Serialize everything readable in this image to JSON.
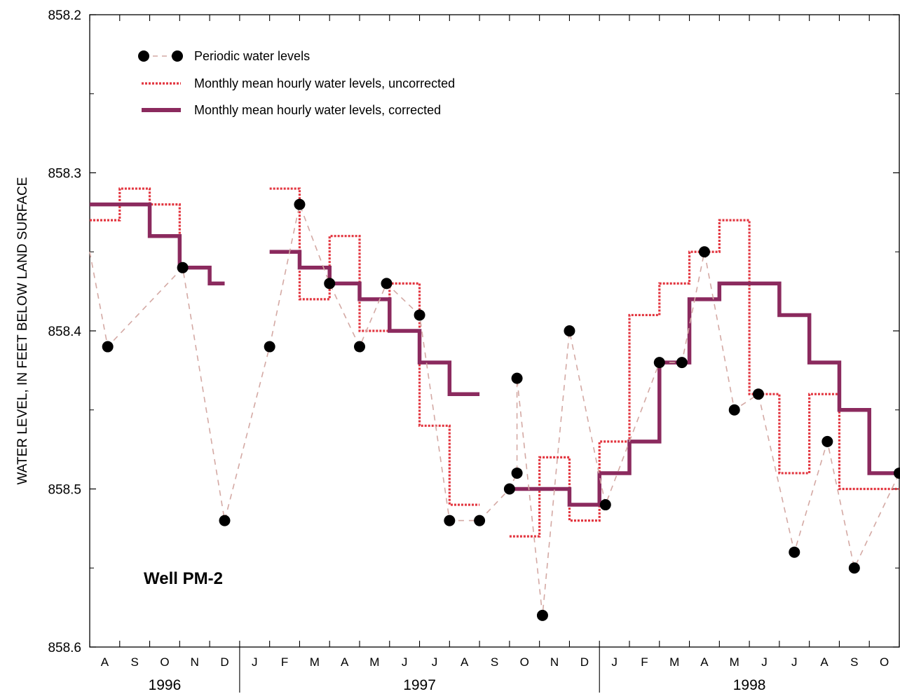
{
  "chart_data": {
    "type": "line",
    "ylabel": "WATER LEVEL, IN FEET BELOW LAND SURFACE",
    "ylim": [
      858.2,
      858.6
    ],
    "y_inverted": true,
    "y_ticks": [
      858.2,
      858.3,
      858.4,
      858.5,
      858.6
    ],
    "y_tick_labels": [
      "858.2",
      "858.3",
      "858.4",
      "858.5",
      "858.6"
    ],
    "month_labels": [
      "A",
      "S",
      "O",
      "N",
      "D",
      "J",
      "F",
      "M",
      "A",
      "M",
      "J",
      "J",
      "A",
      "S",
      "O",
      "N",
      "D",
      "J",
      "F",
      "M",
      "A",
      "M",
      "J",
      "J",
      "A",
      "S",
      "O"
    ],
    "years": [
      {
        "label": "1996",
        "start_month": 0,
        "end_month": 5
      },
      {
        "label": "1997",
        "start_month": 5,
        "end_month": 17
      },
      {
        "label": "1998",
        "start_month": 17,
        "end_month": 27
      }
    ],
    "annotation": "Well PM-2",
    "colors": {
      "periodic_markers": "#000000",
      "periodic_line": "#d4a9a4",
      "uncorrected": "#e2353f",
      "corrected": "#8b2a5e"
    },
    "legend_position": "top-left",
    "series": [
      {
        "name": "Periodic water levels",
        "style": "markers-dashed",
        "points": [
          [
            0.0,
            858.35
          ],
          [
            0.6,
            858.41
          ],
          [
            3.1,
            858.36
          ],
          [
            4.5,
            858.52
          ],
          [
            6.0,
            858.41
          ],
          [
            7.0,
            858.32
          ],
          [
            8.0,
            858.37
          ],
          [
            9.0,
            858.41
          ],
          [
            9.9,
            858.37
          ],
          [
            11.0,
            858.39
          ],
          [
            12.0,
            858.52
          ],
          [
            13.0,
            858.52
          ],
          [
            14.0,
            858.5
          ],
          [
            14.25,
            858.49
          ],
          [
            14.25,
            858.43
          ],
          [
            15.1,
            858.58
          ],
          [
            16.0,
            858.4
          ],
          [
            17.2,
            858.51
          ],
          [
            19.0,
            858.42
          ],
          [
            19.75,
            858.42
          ],
          [
            20.5,
            858.35
          ],
          [
            21.5,
            858.45
          ],
          [
            22.3,
            858.44
          ],
          [
            23.5,
            858.54
          ],
          [
            24.6,
            858.47
          ],
          [
            25.5,
            858.55
          ],
          [
            27.0,
            858.49
          ]
        ]
      },
      {
        "name": "Monthly mean hourly water levels, uncorrected",
        "style": "dotted-step",
        "segments": [
          [
            [
              0,
              1,
              858.33
            ],
            [
              1,
              2,
              858.31
            ],
            [
              2,
              3,
              858.32
            ],
            [
              3,
              4,
              858.36
            ]
          ],
          [
            [
              6,
              7,
              858.31
            ],
            [
              7,
              8,
              858.38
            ],
            [
              8,
              9,
              858.34
            ],
            [
              9,
              10,
              858.4
            ],
            [
              10,
              11,
              858.37
            ],
            [
              11,
              12,
              858.46
            ],
            [
              12,
              13,
              858.51
            ]
          ],
          [
            [
              14,
              15,
              858.53
            ],
            [
              15,
              16,
              858.48
            ],
            [
              16,
              17,
              858.52
            ],
            [
              17,
              18,
              858.47
            ],
            [
              18,
              19,
              858.39
            ],
            [
              19,
              20,
              858.37
            ],
            [
              20,
              21,
              858.35
            ],
            [
              21,
              22,
              858.33
            ],
            [
              22,
              23,
              858.44
            ],
            [
              23,
              24,
              858.49
            ],
            [
              24,
              25,
              858.44
            ],
            [
              25,
              27,
              858.5
            ]
          ]
        ]
      },
      {
        "name": "Monthly mean hourly water levels, corrected",
        "style": "thick-step",
        "segments": [
          [
            [
              0,
              2,
              858.32
            ],
            [
              2,
              3,
              858.34
            ],
            [
              3,
              4,
              858.36
            ],
            [
              4,
              4.5,
              858.37
            ]
          ],
          [
            [
              6,
              7,
              858.35
            ],
            [
              7,
              8,
              858.36
            ],
            [
              8,
              9,
              858.37
            ],
            [
              9,
              10,
              858.38
            ],
            [
              10,
              11,
              858.4
            ],
            [
              11,
              12,
              858.42
            ],
            [
              12,
              13,
              858.44
            ]
          ],
          [
            [
              14,
              16,
              858.5
            ],
            [
              16,
              17,
              858.51
            ],
            [
              17,
              18,
              858.49
            ],
            [
              18,
              19,
              858.47
            ],
            [
              19,
              20,
              858.42
            ],
            [
              20,
              21,
              858.38
            ],
            [
              21,
              23,
              858.37
            ],
            [
              23,
              24,
              858.39
            ],
            [
              24,
              25,
              858.42
            ],
            [
              25,
              26,
              858.45
            ],
            [
              26,
              27,
              858.49
            ]
          ]
        ]
      }
    ]
  }
}
